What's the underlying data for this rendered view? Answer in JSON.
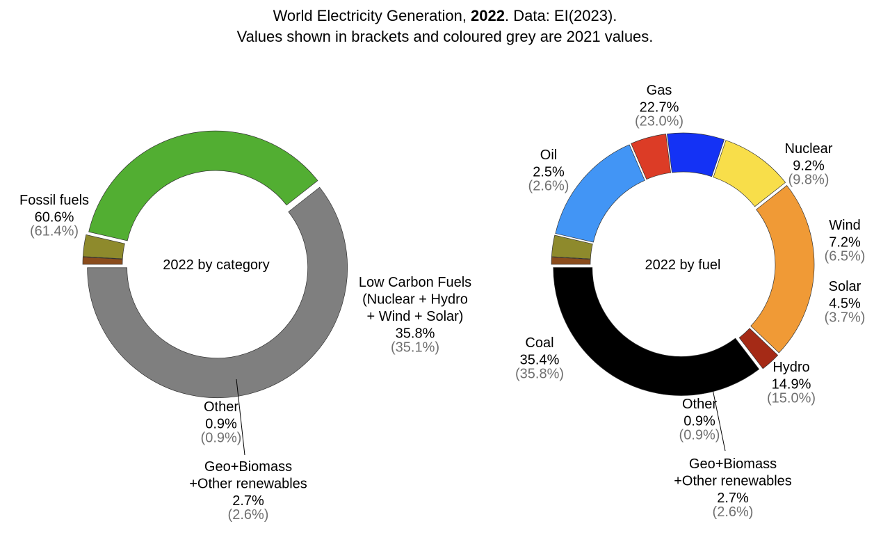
{
  "title": {
    "prefix": "World Electricity Generation, ",
    "year": "2022",
    "suffix": ". Data: EI(2023).",
    "line2": "Values shown in brackets and coloured grey are 2021 values."
  },
  "chart_data": [
    {
      "type": "pie",
      "center_label": "2022 by category",
      "slices": [
        {
          "id": "fossil",
          "lines": [
            "Fossil fuels"
          ],
          "value": 60.6,
          "value_label": "60.6%",
          "prev_label": "(61.4%)",
          "color": "#7f7f7f"
        },
        {
          "id": "lowcarbon",
          "lines": [
            "Low Carbon Fuels",
            "(Nuclear + Hydro",
            "+ Wind + Solar)"
          ],
          "value": 35.8,
          "value_label": "35.8%",
          "prev_label": "(35.1%)",
          "color": "#52ae32"
        },
        {
          "id": "geo",
          "lines": [
            "Geo+Biomass",
            "+Other renewables"
          ],
          "value": 2.7,
          "value_label": "2.7%",
          "prev_label": "(2.6%)",
          "color": "#8e8a2c"
        },
        {
          "id": "other",
          "lines": [
            "Other"
          ],
          "value": 0.9,
          "value_label": "0.9%",
          "prev_label": "(0.9%)",
          "color": "#8b4c1c"
        }
      ]
    },
    {
      "type": "pie",
      "center_label": "2022 by fuel",
      "slices": [
        {
          "id": "coal",
          "lines": [
            "Coal"
          ],
          "value": 35.4,
          "value_label": "35.4%",
          "prev_label": "(35.8%)",
          "color": "#000000"
        },
        {
          "id": "oil",
          "lines": [
            "Oil"
          ],
          "value": 2.5,
          "value_label": "2.5%",
          "prev_label": "(2.6%)",
          "color": "#a52a16"
        },
        {
          "id": "gas",
          "lines": [
            "Gas"
          ],
          "value": 22.7,
          "value_label": "22.7%",
          "prev_label": "(23.0%)",
          "color": "#f09a36"
        },
        {
          "id": "nuclear",
          "lines": [
            "Nuclear"
          ],
          "value": 9.2,
          "value_label": "9.2%",
          "prev_label": "(9.8%)",
          "color": "#f8de4a"
        },
        {
          "id": "wind",
          "lines": [
            "Wind"
          ],
          "value": 7.2,
          "value_label": "7.2%",
          "prev_label": "(6.5%)",
          "color": "#1432f5"
        },
        {
          "id": "solar",
          "lines": [
            "Solar"
          ],
          "value": 4.5,
          "value_label": "4.5%",
          "prev_label": "(3.7%)",
          "color": "#dc3c26"
        },
        {
          "id": "hydro",
          "lines": [
            "Hydro"
          ],
          "value": 14.9,
          "value_label": "14.9%",
          "prev_label": "(15.0%)",
          "color": "#4295f5"
        },
        {
          "id": "geo",
          "lines": [
            "Geo+Biomass",
            "+Other renewables"
          ],
          "value": 2.7,
          "value_label": "2.7%",
          "prev_label": "(2.6%)",
          "color": "#8e8a2c"
        },
        {
          "id": "other",
          "lines": [
            "Other"
          ],
          "value": 0.9,
          "value_label": "0.9%",
          "prev_label": "(0.9%)",
          "color": "#8b4c1c"
        }
      ]
    }
  ],
  "colors": {
    "text": "#000000",
    "prev_text": "#707070",
    "edge": "#333333"
  }
}
